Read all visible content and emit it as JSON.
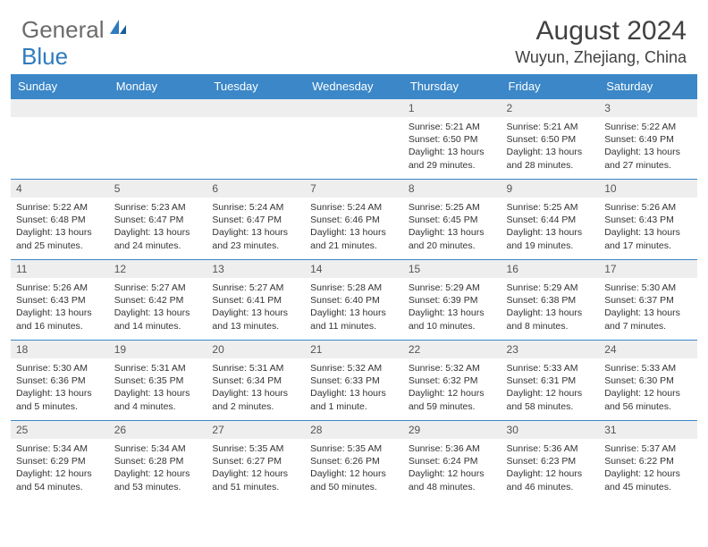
{
  "brand": {
    "part1": "General",
    "part2": "Blue"
  },
  "title": "August 2024",
  "location": "Wuyun, Zhejiang, China",
  "colors": {
    "header_bg": "#3b87c8",
    "header_text": "#ffffff",
    "daynum_bg": "#eeeeee",
    "row_border": "#3b87c8",
    "brand_gray": "#6b6b6b",
    "brand_blue": "#2f7bbf",
    "text": "#333333"
  },
  "dayNames": [
    "Sunday",
    "Monday",
    "Tuesday",
    "Wednesday",
    "Thursday",
    "Friday",
    "Saturday"
  ],
  "startOffset": 4,
  "numDays": 31,
  "days": [
    {
      "n": 1,
      "sr": "5:21 AM",
      "ss": "6:50 PM",
      "dh": 13,
      "dm": 29
    },
    {
      "n": 2,
      "sr": "5:21 AM",
      "ss": "6:50 PM",
      "dh": 13,
      "dm": 28
    },
    {
      "n": 3,
      "sr": "5:22 AM",
      "ss": "6:49 PM",
      "dh": 13,
      "dm": 27
    },
    {
      "n": 4,
      "sr": "5:22 AM",
      "ss": "6:48 PM",
      "dh": 13,
      "dm": 25
    },
    {
      "n": 5,
      "sr": "5:23 AM",
      "ss": "6:47 PM",
      "dh": 13,
      "dm": 24
    },
    {
      "n": 6,
      "sr": "5:24 AM",
      "ss": "6:47 PM",
      "dh": 13,
      "dm": 23
    },
    {
      "n": 7,
      "sr": "5:24 AM",
      "ss": "6:46 PM",
      "dh": 13,
      "dm": 21
    },
    {
      "n": 8,
      "sr": "5:25 AM",
      "ss": "6:45 PM",
      "dh": 13,
      "dm": 20
    },
    {
      "n": 9,
      "sr": "5:25 AM",
      "ss": "6:44 PM",
      "dh": 13,
      "dm": 19
    },
    {
      "n": 10,
      "sr": "5:26 AM",
      "ss": "6:43 PM",
      "dh": 13,
      "dm": 17
    },
    {
      "n": 11,
      "sr": "5:26 AM",
      "ss": "6:43 PM",
      "dh": 13,
      "dm": 16
    },
    {
      "n": 12,
      "sr": "5:27 AM",
      "ss": "6:42 PM",
      "dh": 13,
      "dm": 14
    },
    {
      "n": 13,
      "sr": "5:27 AM",
      "ss": "6:41 PM",
      "dh": 13,
      "dm": 13
    },
    {
      "n": 14,
      "sr": "5:28 AM",
      "ss": "6:40 PM",
      "dh": 13,
      "dm": 11
    },
    {
      "n": 15,
      "sr": "5:29 AM",
      "ss": "6:39 PM",
      "dh": 13,
      "dm": 10
    },
    {
      "n": 16,
      "sr": "5:29 AM",
      "ss": "6:38 PM",
      "dh": 13,
      "dm": 8
    },
    {
      "n": 17,
      "sr": "5:30 AM",
      "ss": "6:37 PM",
      "dh": 13,
      "dm": 7
    },
    {
      "n": 18,
      "sr": "5:30 AM",
      "ss": "6:36 PM",
      "dh": 13,
      "dm": 5
    },
    {
      "n": 19,
      "sr": "5:31 AM",
      "ss": "6:35 PM",
      "dh": 13,
      "dm": 4
    },
    {
      "n": 20,
      "sr": "5:31 AM",
      "ss": "6:34 PM",
      "dh": 13,
      "dm": 2
    },
    {
      "n": 21,
      "sr": "5:32 AM",
      "ss": "6:33 PM",
      "dh": 13,
      "dm": 1
    },
    {
      "n": 22,
      "sr": "5:32 AM",
      "ss": "6:32 PM",
      "dh": 12,
      "dm": 59
    },
    {
      "n": 23,
      "sr": "5:33 AM",
      "ss": "6:31 PM",
      "dh": 12,
      "dm": 58
    },
    {
      "n": 24,
      "sr": "5:33 AM",
      "ss": "6:30 PM",
      "dh": 12,
      "dm": 56
    },
    {
      "n": 25,
      "sr": "5:34 AM",
      "ss": "6:29 PM",
      "dh": 12,
      "dm": 54
    },
    {
      "n": 26,
      "sr": "5:34 AM",
      "ss": "6:28 PM",
      "dh": 12,
      "dm": 53
    },
    {
      "n": 27,
      "sr": "5:35 AM",
      "ss": "6:27 PM",
      "dh": 12,
      "dm": 51
    },
    {
      "n": 28,
      "sr": "5:35 AM",
      "ss": "6:26 PM",
      "dh": 12,
      "dm": 50
    },
    {
      "n": 29,
      "sr": "5:36 AM",
      "ss": "6:24 PM",
      "dh": 12,
      "dm": 48
    },
    {
      "n": 30,
      "sr": "5:36 AM",
      "ss": "6:23 PM",
      "dh": 12,
      "dm": 46
    },
    {
      "n": 31,
      "sr": "5:37 AM",
      "ss": "6:22 PM",
      "dh": 12,
      "dm": 45
    }
  ]
}
